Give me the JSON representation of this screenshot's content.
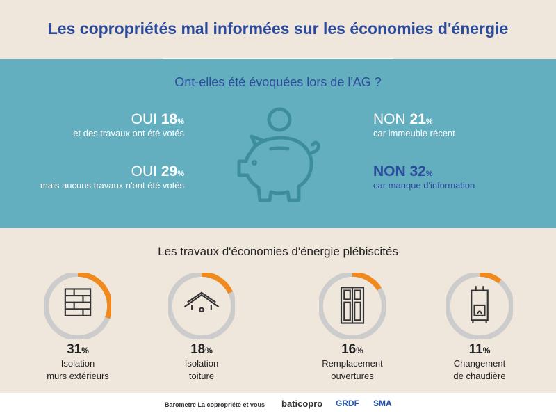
{
  "title": "Les copropriétés mal informées sur les économies d'énergie",
  "question": "Ont-elles été évoquées lors de l'AG ?",
  "stats": [
    {
      "label": "OUI",
      "value": "18",
      "unit": "%",
      "sub": "et des travaux ont été votés"
    },
    {
      "label": "OUI",
      "value": "29",
      "unit": "%",
      "sub": "mais aucuns travaux n'ont été votés"
    },
    {
      "label": "NON",
      "value": "21",
      "unit": "%",
      "sub": "car immeuble récent"
    },
    {
      "label": "NON",
      "value": "32",
      "unit": "%",
      "sub": "car manque d'information"
    }
  ],
  "works_title": "Les travaux d'économies d'énergie plébiscités",
  "works": [
    {
      "value": "31",
      "unit": "%",
      "line1": "Isolation",
      "line2": "murs extérieurs",
      "percent": 31,
      "icon": "brick-wall-icon"
    },
    {
      "value": "18",
      "unit": "%",
      "line1": "Isolation",
      "line2": "toiture",
      "percent": 18,
      "icon": "roof-icon"
    },
    {
      "value": "16",
      "unit": "%",
      "line1": "Remplacement",
      "line2": "ouvertures",
      "percent": 16,
      "icon": "window-icon"
    },
    {
      "value": "11",
      "unit": "%",
      "line1": "Changement",
      "line2": "de chaudière",
      "percent": 11,
      "icon": "boiler-icon"
    }
  ],
  "footer": {
    "text": "Baromètre La copropriété et vous",
    "logos": [
      "baticopro",
      "GRDF",
      "SMA"
    ]
  },
  "colors": {
    "title": "#2c4b9c",
    "teal": "#64afbf",
    "accent": "#f08a1e",
    "ring": "#cccccc"
  }
}
